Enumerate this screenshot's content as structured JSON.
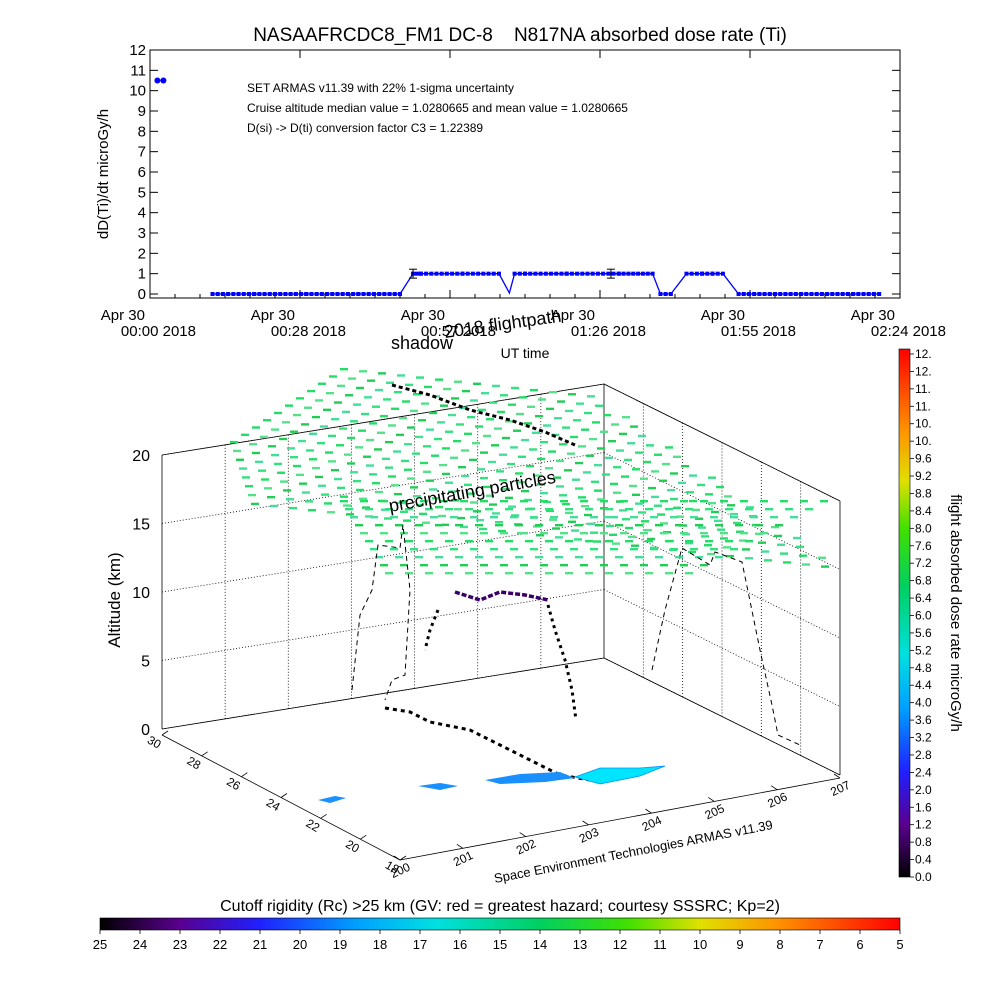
{
  "chart_data": [
    {
      "type": "line",
      "title": "NASAAFRCDC8_FM1 DC-8    N817NA absorbed dose rate (Ti)",
      "ylabel": "dD(Ti)/dt microGy/h",
      "xlabel": "UT time",
      "ylim": [
        0,
        12
      ],
      "yticks": [
        "0",
        "1",
        "2",
        "3",
        "4",
        "5",
        "6",
        "7",
        "8",
        "9",
        "10",
        "11",
        "12"
      ],
      "xlim_minutes": [
        0,
        144
      ],
      "xticks": [
        {
          "line1": "Apr 30",
          "line2": "00:00 2018",
          "minute": 0
        },
        {
          "line1": "Apr 30",
          "line2": "00:28 2018",
          "minute": 28.8
        },
        {
          "line1": "Apr 30",
          "line2": "00:57 2018",
          "minute": 57.6
        },
        {
          "line1": "Apr 30",
          "line2": "01:26 2018",
          "minute": 86.4
        },
        {
          "line1": "Apr 30",
          "line2": "01:55 2018",
          "minute": 115.2
        },
        {
          "line1": "Apr 30",
          "line2": "02:24 2018",
          "minute": 144
        }
      ],
      "annotations": [
        "SET ARMAS v11.39 with 22% 1-sigma uncertainty",
        "Cruise altitude median value = 1.0280665 and mean value = 1.0280665",
        "D(si) -> D(ti) conversion factor C3 = 1.22389"
      ],
      "series": [
        {
          "color": "#0000ff",
          "x": [
            12,
            20,
            30,
            40,
            48,
            50.5,
            52,
            60,
            67,
            69,
            70,
            72,
            80,
            90,
            96.5,
            98,
            100,
            103,
            106,
            108,
            110,
            113,
            115,
            125,
            135,
            140
          ],
          "y": [
            0,
            0,
            0,
            0,
            0,
            1.0,
            1.0,
            1.0,
            1.0,
            0.05,
            1.0,
            1.0,
            1.0,
            1.0,
            1.0,
            0,
            0,
            1.0,
            1.0,
            1.0,
            1.0,
            0,
            0,
            0,
            0,
            0
          ]
        }
      ],
      "errorbars": [
        {
          "x": 50.5,
          "y": 1.0,
          "err": 0.22
        },
        {
          "x": 88.5,
          "y": 1.0,
          "err": 0.22
        }
      ],
      "legend_marker": {
        "x": 2,
        "y": 10.5
      }
    },
    {
      "type": "scatter",
      "subtype": "3d-flight-track",
      "zlabel": "Altitude (km)",
      "zticks": [
        "0",
        "5",
        "10",
        "15",
        "20"
      ],
      "longitude_ticks": [
        "200",
        "201",
        "202",
        "203",
        "204",
        "205",
        "206",
        "207"
      ],
      "latitude_ticks": [
        "18",
        "20",
        "22",
        "24",
        "26",
        "28",
        "30"
      ],
      "annotations": [
        "shadow",
        "2018 flightpath",
        "precipitating particles"
      ],
      "footer": "Space Environment Technologies ARMAS v11.39",
      "colorbar_label": "flight absorbed dose rate microGy/h",
      "colorbar_ticks": [
        "0.0",
        "0.4",
        "0.8",
        "1.2",
        "1.6",
        "2.0",
        "2.4",
        "2.8",
        "3.2",
        "3.6",
        "4.0",
        "4.4",
        "4.8",
        "5.2",
        "5.6",
        "6.0",
        "6.4",
        "6.8",
        "7.2",
        "7.6",
        "8.0",
        "8.4",
        "8.8",
        "9.2",
        "9.6",
        "10.",
        "10.",
        "11.",
        "11.",
        "12.",
        "12."
      ]
    },
    {
      "type": "heatmap",
      "subtype": "colorbar",
      "title": "Cutoff rigidity (Rc) >25 km (GV: red = greatest hazard; courtesy SSSRC; Kp=2)",
      "ticks": [
        "25",
        "24",
        "23",
        "22",
        "21",
        "20",
        "19",
        "18",
        "17",
        "16",
        "15",
        "14",
        "13",
        "12",
        "11",
        "10",
        "9",
        "8",
        "7",
        "6",
        "5"
      ]
    }
  ],
  "colors": {
    "track": "#0000ff",
    "precip": "#33dd88",
    "flight3d": "#000000",
    "flight_purple": "#3a0066",
    "ground_cyan": "#00e5ff"
  }
}
